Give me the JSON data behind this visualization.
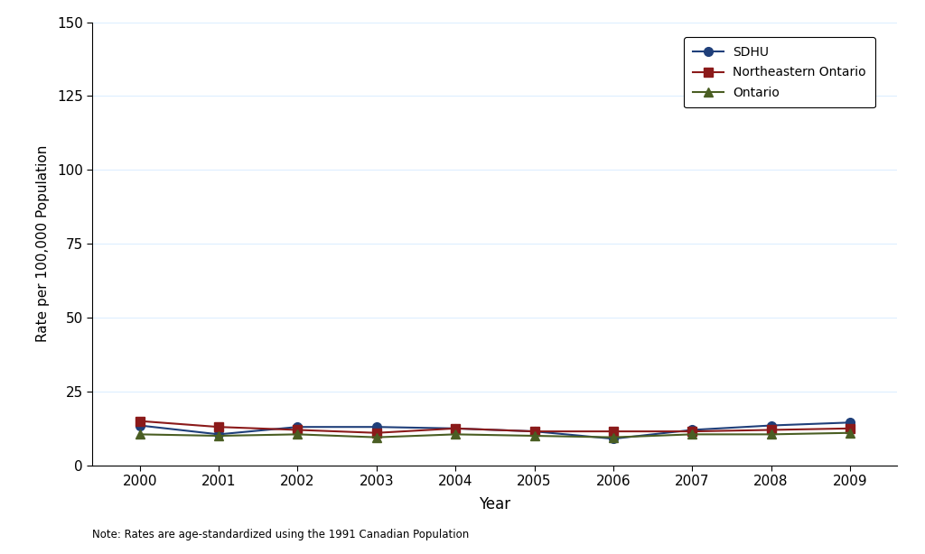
{
  "years": [
    2000,
    2001,
    2002,
    2003,
    2004,
    2005,
    2006,
    2007,
    2008,
    2009
  ],
  "SDHU": [
    13.5,
    10.5,
    13.0,
    13.0,
    12.5,
    11.5,
    9.0,
    12.0,
    13.5,
    14.5
  ],
  "Northeastern_Ontario": [
    15.0,
    13.0,
    12.0,
    11.0,
    12.5,
    11.5,
    11.5,
    11.5,
    12.0,
    12.5
  ],
  "Ontario": [
    10.5,
    10.0,
    10.5,
    9.5,
    10.5,
    10.0,
    9.5,
    10.5,
    10.5,
    11.0
  ],
  "SDHU_color": "#1f3f7a",
  "NEO_color": "#8b1a1a",
  "Ontario_color": "#4a5e23",
  "xlabel": "Year",
  "ylabel": "Rate per 100,000 Population",
  "ylim": [
    0,
    150
  ],
  "yticks": [
    0,
    25,
    50,
    75,
    100,
    125,
    150
  ],
  "note": "Note: Rates are age-standardized using the 1991 Canadian Population",
  "legend_labels": [
    "SDHU",
    "Northeastern Ontario",
    "Ontario"
  ],
  "background_color": "#ffffff",
  "grid_color": "#ddeeff",
  "figsize": [
    10.24,
    6.14
  ],
  "dpi": 100
}
